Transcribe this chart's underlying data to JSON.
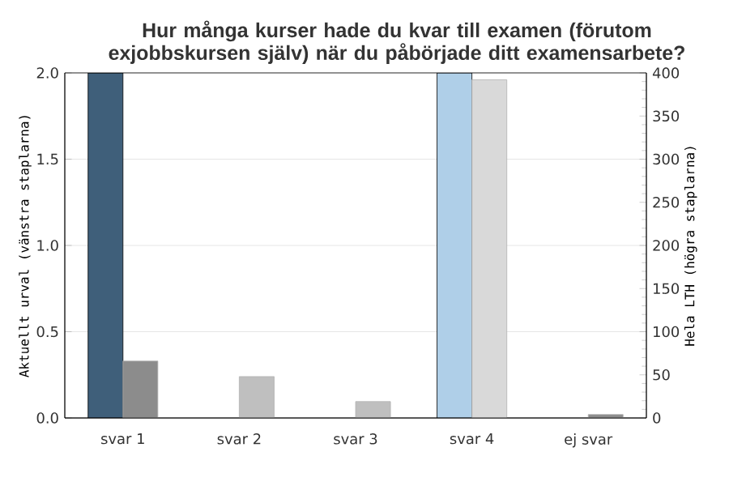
{
  "chart_data": {
    "type": "bar",
    "title": "Hur många kurser hade du kvar till examen (förutom exjobbskursen själv) när du påbörjade ditt examensarbete?",
    "categories": [
      "svar 1",
      "svar 2",
      "svar 3",
      "svar 4",
      "ej svar"
    ],
    "ylabel": "Aktuellt urval (vänstra staplarna)",
    "y2label": "Hela LTH (högra staplarna)",
    "series": [
      {
        "colors": [
          "#3f5f7a",
          "#3f5f7a",
          "#3f5f7a",
          "#afcfe8",
          "#3f5f7a"
        ],
        "values": [
          2,
          null,
          null,
          2,
          null
        ]
      },
      {
        "axis": "y2",
        "colors": [
          "#8c8c8c",
          "#bfbfbf",
          "#bfbfbf",
          "#d9d9d9",
          "#8c8c8c"
        ],
        "values": [
          66,
          48,
          19,
          392,
          4
        ]
      }
    ],
    "ylim": [
      0,
      2
    ],
    "yticks": [
      {
        "value": 0,
        "label": "0.0"
      },
      {
        "value": 0.5,
        "label": "0.5"
      },
      {
        "value": 1,
        "label": "1.0"
      },
      {
        "value": 1.5,
        "label": "1.5"
      },
      {
        "value": 2,
        "label": "2.0"
      }
    ],
    "y2lim": [
      0,
      400
    ],
    "y2ticks": [
      0,
      50,
      100,
      150,
      200,
      250,
      300,
      350,
      400
    ],
    "grid": "y"
  }
}
